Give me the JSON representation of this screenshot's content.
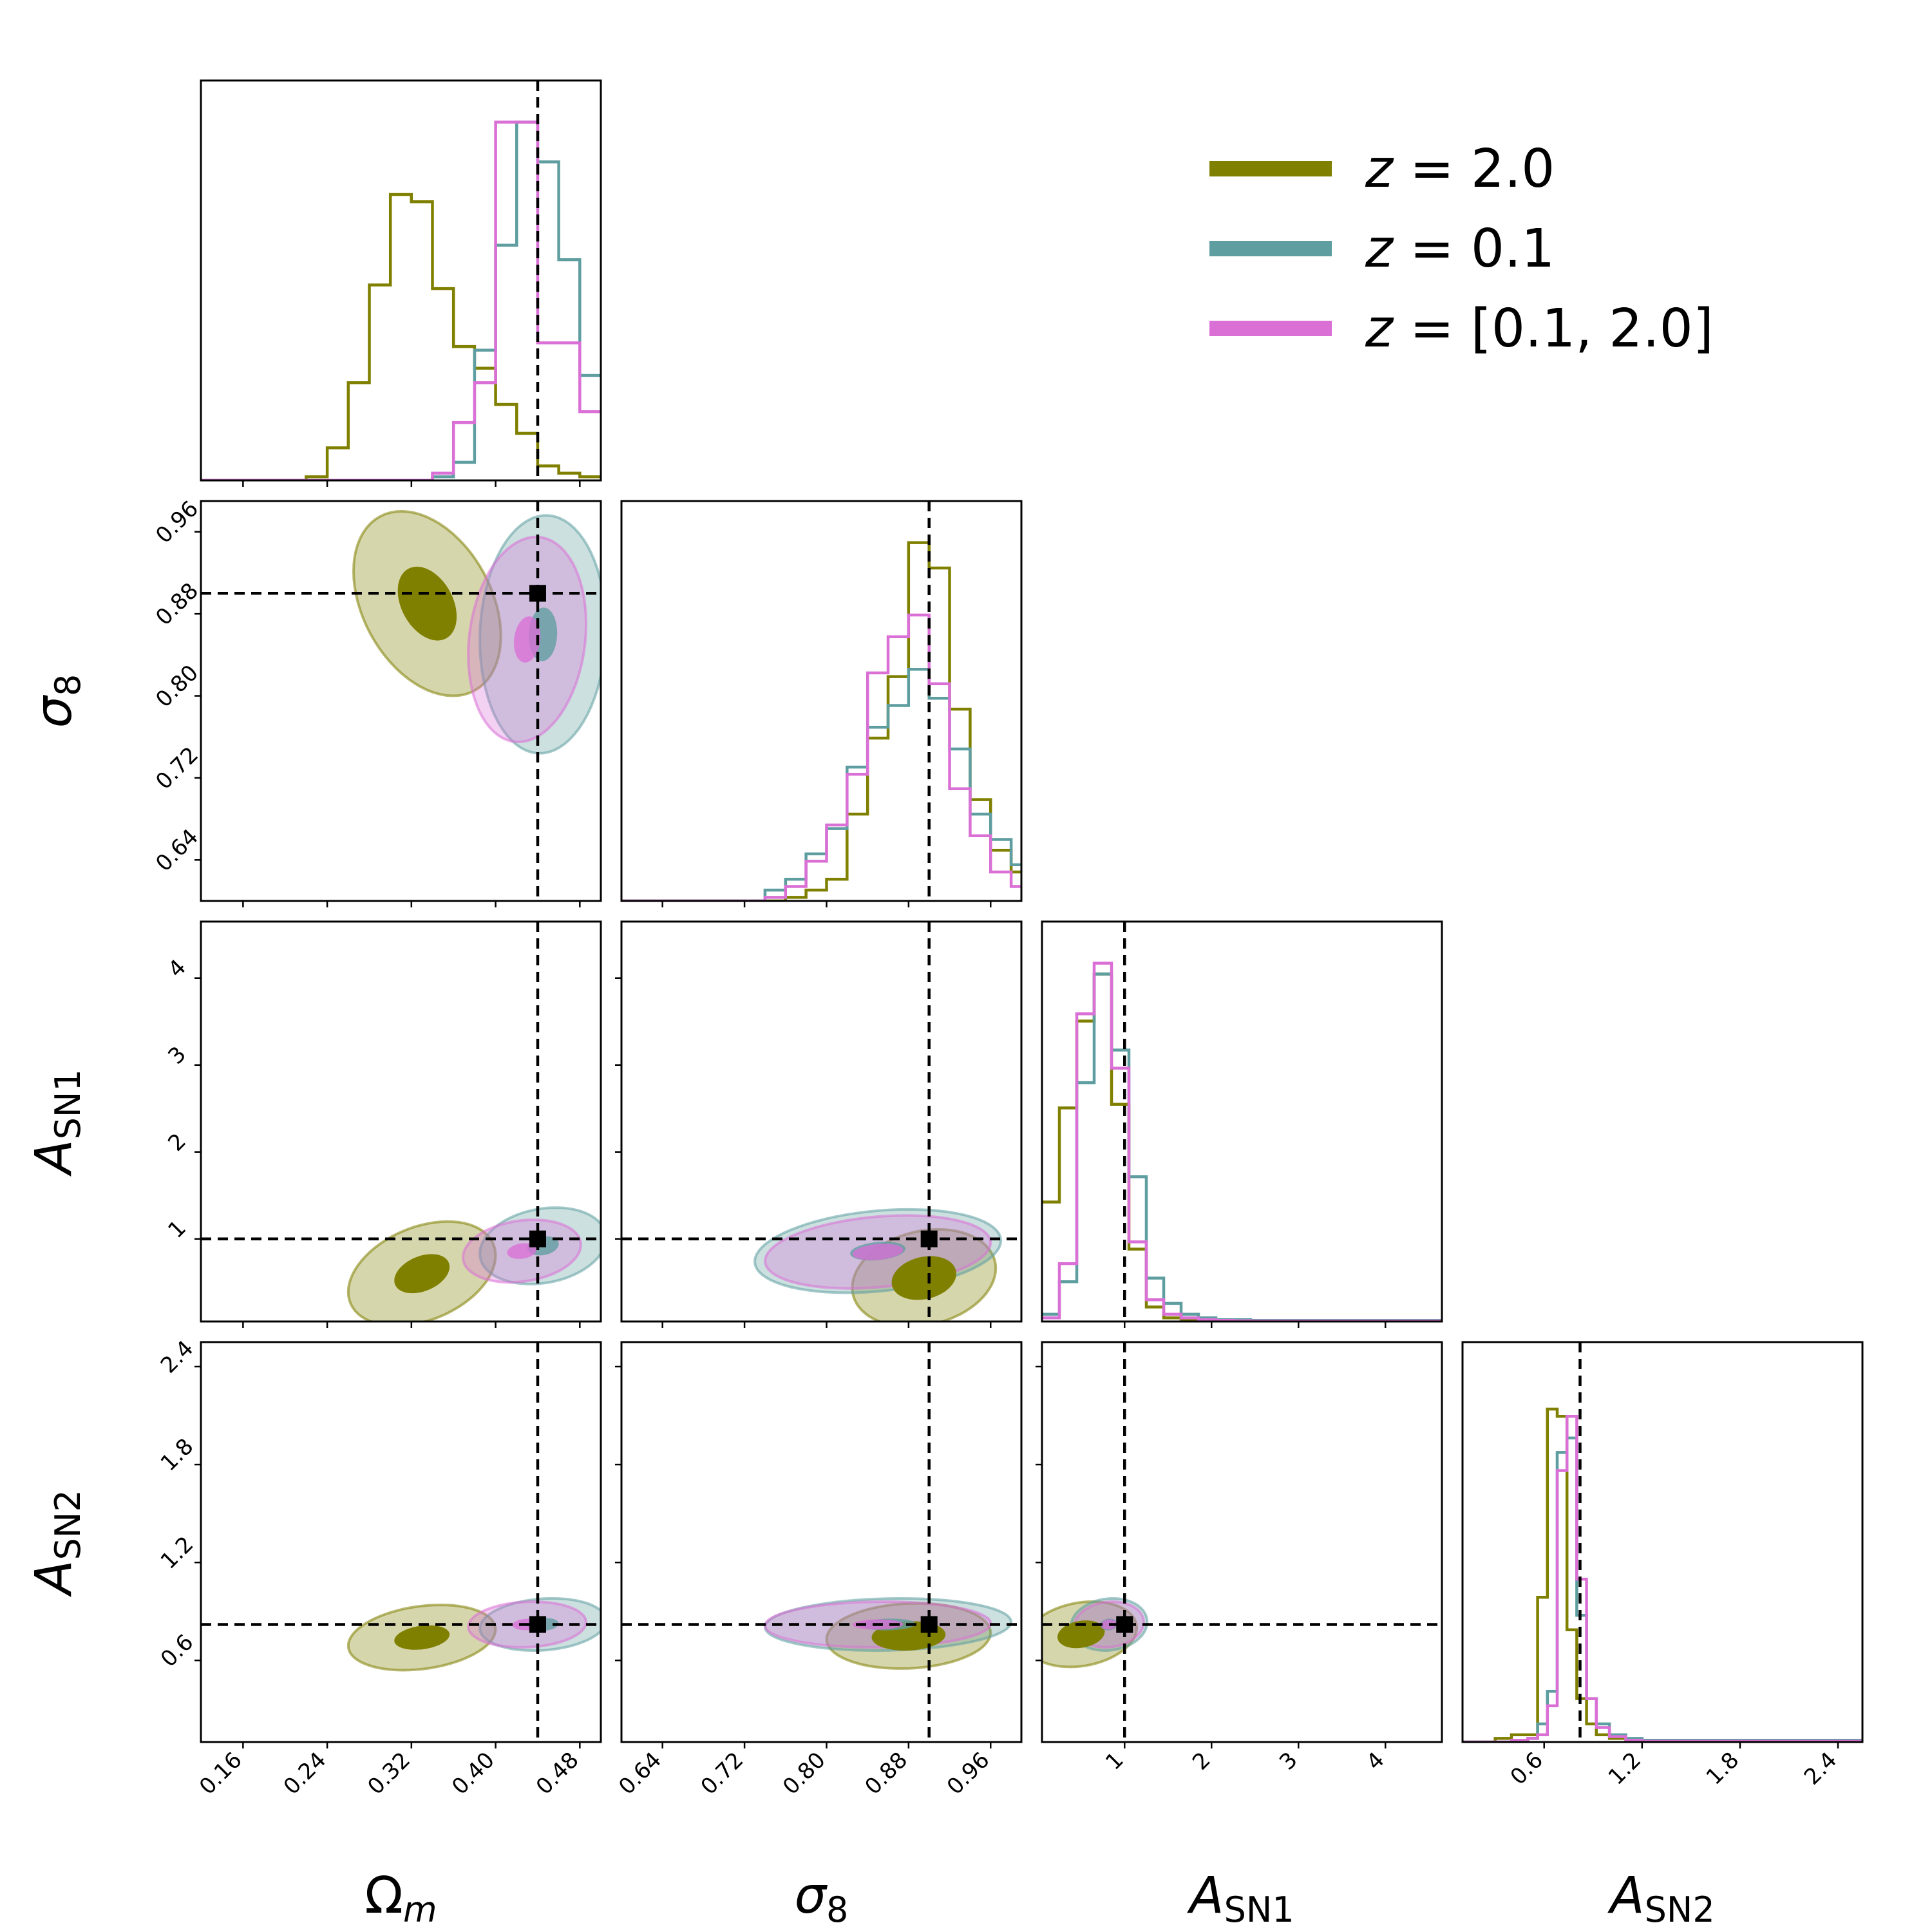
{
  "chart_data": {
    "type": "corner",
    "parameters": [
      "Omega_m",
      "sigma_8",
      "A_SN1",
      "A_SN2"
    ],
    "truth": {
      "Omega_m": 0.44,
      "sigma_8": 0.9,
      "A_SN1": 1.0,
      "A_SN2": 0.82
    },
    "ranges": {
      "Omega_m": [
        0.12,
        0.5
      ],
      "sigma_8": [
        0.6,
        0.99
      ],
      "A_SN1": [
        0.05,
        4.65
      ],
      "A_SN2": [
        0.1,
        2.55
      ]
    },
    "axis_labels": {
      "Omega_m": {
        "main": "Ω",
        "sub": "m"
      },
      "sigma_8": {
        "main": "σ",
        "sub": "8"
      },
      "A_SN1": {
        "main": "A",
        "sub": "SN1"
      },
      "A_SN2": {
        "main": "A",
        "sub": "SN2"
      }
    },
    "ticks": {
      "Omega_m": {
        "values": [
          0.16,
          0.24,
          0.32,
          0.4,
          0.48
        ],
        "labels": [
          "0.16",
          "0.24",
          "0.32",
          "0.40",
          "0.48"
        ]
      },
      "sigma_8": {
        "values": [
          0.64,
          0.72,
          0.8,
          0.88,
          0.96
        ],
        "labels": [
          "0.64",
          "0.72",
          "0.80",
          "0.88",
          "0.96"
        ]
      },
      "A_SN1": {
        "values": [
          1,
          2,
          3,
          4
        ],
        "labels": [
          "1",
          "2",
          "3",
          "4"
        ]
      },
      "A_SN2": {
        "values": [
          0.6,
          1.2,
          1.8,
          2.4
        ],
        "labels": [
          "0.6",
          "1.2",
          "1.8",
          "2.4"
        ]
      }
    },
    "series": [
      {
        "name": "z = 2.0",
        "legend": {
          "var": "z",
          "rest": " = 2.0"
        },
        "color": "#808000",
        "marginals": {
          "Omega_m": {
            "edges": [
              0.12,
              0.14,
              0.16,
              0.18,
              0.2,
              0.22,
              0.24,
              0.26,
              0.28,
              0.3,
              0.32,
              0.34,
              0.36,
              0.38,
              0.4,
              0.42,
              0.44,
              0.46,
              0.48,
              0.5
            ],
            "values": [
              0,
              0,
              0,
              0,
              0,
              0.01,
              0.09,
              0.27,
              0.54,
              0.79,
              0.77,
              0.53,
              0.37,
              0.31,
              0.21,
              0.13,
              0.04,
              0.02,
              0.01
            ]
          },
          "sigma_8": {
            "edges": [
              0.6,
              0.62,
              0.64,
              0.66,
              0.68,
              0.7,
              0.72,
              0.74,
              0.76,
              0.78,
              0.8,
              0.82,
              0.84,
              0.86,
              0.88,
              0.9,
              0.92,
              0.94,
              0.96,
              0.98,
              0.99
            ],
            "values": [
              0,
              0,
              0,
              0,
              0,
              0,
              0,
              0,
              0.01,
              0.03,
              0.06,
              0.24,
              0.45,
              0.62,
              0.99,
              0.92,
              0.53,
              0.28,
              0.14,
              0.08
            ]
          },
          "A_SN1": {
            "edges": [
              0.05,
              0.25,
              0.45,
              0.65,
              0.85,
              1.05,
              1.25,
              1.45,
              1.65,
              1.85,
              2.05,
              2.25,
              2.45,
              4.65
            ],
            "values": [
              0.33,
              0.59,
              0.83,
              0.96,
              0.6,
              0.2,
              0.04,
              0.01,
              0.005,
              0,
              0,
              0,
              0
            ]
          },
          "A_SN2": {
            "edges": [
              0.1,
              0.3,
              0.4,
              0.5,
              0.56,
              0.62,
              0.68,
              0.74,
              0.8,
              0.86,
              0.92,
              1.0,
              1.1,
              1.2,
              2.55
            ],
            "values": [
              0,
              0.01,
              0.02,
              0.02,
              0.4,
              0.92,
              0.9,
              0.31,
              0.12,
              0.05,
              0.02,
              0.01,
              0.005,
              0
            ]
          }
        },
        "contours": {
          "sigma_8|Omega_m": {
            "center": [
              0.335,
              0.89
            ],
            "sigma": [
              0.035,
              0.045
            ],
            "rho": -0.35,
            "inner_k": 0.8
          },
          "A_SN1|Omega_m": {
            "center": [
              0.33,
              0.6
            ],
            "sigma": [
              0.035,
              0.3
            ],
            "rho": 0.35,
            "inner_k": 0.75
          },
          "A_SN1|sigma_8": {
            "center": [
              0.895,
              0.55
            ],
            "sigma": [
              0.035,
              0.28
            ],
            "rho": 0.2,
            "inner_k": 0.9
          },
          "A_SN2|Omega_m": {
            "center": [
              0.33,
              0.74
            ],
            "sigma": [
              0.035,
              0.1
            ],
            "rho": 0.25,
            "inner_k": 0.75
          },
          "A_SN2|sigma_8": {
            "center": [
              0.88,
              0.75
            ],
            "sigma": [
              0.04,
              0.1
            ],
            "rho": 0.1,
            "inner_k": 0.9
          },
          "A_SN2|A_SN1": {
            "center": [
              0.5,
              0.76
            ],
            "sigma": [
              0.32,
              0.1
            ],
            "rho": 0.2,
            "inner_k": 0.85
          }
        }
      },
      {
        "name": "z = 0.1",
        "legend": {
          "var": "z",
          "rest": " = 0.1"
        },
        "color": "#5f9ea0",
        "marginals": {
          "Omega_m": {
            "edges": [
              0.12,
              0.14,
              0.16,
              0.18,
              0.2,
              0.22,
              0.24,
              0.26,
              0.28,
              0.3,
              0.32,
              0.34,
              0.36,
              0.38,
              0.4,
              0.42,
              0.44,
              0.46,
              0.48,
              0.5
            ],
            "values": [
              0,
              0,
              0,
              0,
              0,
              0,
              0,
              0,
              0,
              0,
              0,
              0.01,
              0.05,
              0.36,
              0.65,
              0.99,
              0.88,
              0.61,
              0.29
            ]
          },
          "sigma_8": {
            "edges": [
              0.6,
              0.62,
              0.64,
              0.66,
              0.68,
              0.7,
              0.72,
              0.74,
              0.76,
              0.78,
              0.8,
              0.82,
              0.84,
              0.86,
              0.88,
              0.9,
              0.92,
              0.94,
              0.96,
              0.98,
              0.99
            ],
            "values": [
              0,
              0,
              0,
              0,
              0,
              0,
              0,
              0.03,
              0.06,
              0.13,
              0.2,
              0.37,
              0.48,
              0.54,
              0.64,
              0.56,
              0.42,
              0.24,
              0.17,
              0.1
            ]
          },
          "A_SN1": {
            "edges": [
              0.05,
              0.25,
              0.45,
              0.65,
              0.85,
              1.05,
              1.25,
              1.45,
              1.65,
              1.85,
              2.05,
              2.25,
              2.45,
              4.65
            ],
            "values": [
              0.02,
              0.11,
              0.66,
              0.96,
              0.75,
              0.4,
              0.12,
              0.05,
              0.02,
              0.01,
              0.005,
              0.005,
              0.003
            ]
          },
          "A_SN2": {
            "edges": [
              0.1,
              0.3,
              0.4,
              0.5,
              0.56,
              0.62,
              0.68,
              0.74,
              0.8,
              0.86,
              0.92,
              1.0,
              1.1,
              1.2,
              2.55
            ],
            "values": [
              0,
              0,
              0.005,
              0.01,
              0.05,
              0.14,
              0.8,
              0.84,
              0.35,
              0.12,
              0.05,
              0.02,
              0.01,
              0.005
            ]
          }
        },
        "contours": {
          "sigma_8|Omega_m": {
            "center": [
              0.445,
              0.86
            ],
            "sigma": [
              0.03,
              0.058
            ],
            "rho": 0.05,
            "inner_k": 0.45
          },
          "A_SN1|Omega_m": {
            "center": [
              0.445,
              0.92
            ],
            "sigma": [
              0.03,
              0.22
            ],
            "rho": 0.2,
            "inner_k": 0.5
          },
          "A_SN1|sigma_8": {
            "center": [
              0.85,
              0.86
            ],
            "sigma": [
              0.06,
              0.24
            ],
            "rho": 0.25,
            "inner_k": 0.45
          },
          "A_SN2|Omega_m": {
            "center": [
              0.445,
              0.82
            ],
            "sigma": [
              0.03,
              0.08
            ],
            "rho": 0.15,
            "inner_k": 0.5
          },
          "A_SN2|sigma_8": {
            "center": [
              0.86,
              0.82
            ],
            "sigma": [
              0.06,
              0.08
            ],
            "rho": 0.1,
            "inner_k": 0.45
          },
          "A_SN2|A_SN1": {
            "center": [
              0.82,
              0.82
            ],
            "sigma": [
              0.22,
              0.08
            ],
            "rho": 0.1,
            "inner_k": 0.45
          }
        }
      },
      {
        "name": "z = [0.1, 2.0]",
        "legend": {
          "var": "z",
          "rest": " = [0.1, 2.0]"
        },
        "color": "#da70d6",
        "marginals": {
          "Omega_m": {
            "edges": [
              0.12,
              0.14,
              0.16,
              0.18,
              0.2,
              0.22,
              0.24,
              0.26,
              0.28,
              0.3,
              0.32,
              0.34,
              0.36,
              0.38,
              0.4,
              0.42,
              0.44,
              0.46,
              0.48,
              0.5
            ],
            "values": [
              0,
              0,
              0,
              0,
              0,
              0,
              0,
              0,
              0,
              0,
              0,
              0.02,
              0.16,
              0.27,
              0.99,
              0.99,
              0.38,
              0.38,
              0.19
            ]
          },
          "sigma_8": {
            "edges": [
              0.6,
              0.62,
              0.64,
              0.66,
              0.68,
              0.7,
              0.72,
              0.74,
              0.76,
              0.78,
              0.8,
              0.82,
              0.84,
              0.86,
              0.88,
              0.9,
              0.92,
              0.94,
              0.96,
              0.98,
              0.99
            ],
            "values": [
              0,
              0,
              0,
              0,
              0,
              0,
              0,
              0.01,
              0.04,
              0.11,
              0.21,
              0.35,
              0.63,
              0.73,
              0.79,
              0.6,
              0.31,
              0.18,
              0.08,
              0.04
            ]
          },
          "A_SN1": {
            "edges": [
              0.05,
              0.25,
              0.45,
              0.65,
              0.85,
              1.05,
              1.25,
              1.45,
              1.65,
              1.85,
              2.05,
              2.25,
              2.45,
              4.65
            ],
            "values": [
              0.01,
              0.16,
              0.85,
              0.99,
              0.7,
              0.22,
              0.06,
              0.02,
              0.01,
              0.005,
              0.003,
              0.002,
              0.001
            ]
          },
          "A_SN2": {
            "edges": [
              0.1,
              0.3,
              0.4,
              0.5,
              0.56,
              0.62,
              0.68,
              0.74,
              0.8,
              0.86,
              0.92,
              1.0,
              1.1,
              1.2,
              2.55
            ],
            "values": [
              0,
              0,
              0.005,
              0.01,
              0.02,
              0.1,
              0.75,
              0.9,
              0.45,
              0.12,
              0.04,
              0.015,
              0.005,
              0.002
            ]
          }
        },
        "contours": {
          "sigma_8|Omega_m": {
            "center": [
              0.43,
              0.855
            ],
            "sigma": [
              0.028,
              0.05
            ],
            "rho": 0.15,
            "inner_k": 0.45
          },
          "A_SN1|Omega_m": {
            "center": [
              0.425,
              0.86
            ],
            "sigma": [
              0.028,
              0.18
            ],
            "rho": 0.2,
            "inner_k": 0.5
          },
          "A_SN1|sigma_8": {
            "center": [
              0.85,
              0.85
            ],
            "sigma": [
              0.055,
              0.21
            ],
            "rho": 0.25,
            "inner_k": 0.45
          },
          "A_SN2|Omega_m": {
            "center": [
              0.43,
              0.82
            ],
            "sigma": [
              0.028,
              0.07
            ],
            "rho": 0.1,
            "inner_k": 0.5
          },
          "A_SN2|sigma_8": {
            "center": [
              0.85,
              0.82
            ],
            "sigma": [
              0.055,
              0.07
            ],
            "rho": 0.05,
            "inner_k": 0.45
          },
          "A_SN2|A_SN1": {
            "center": [
              0.82,
              0.82
            ],
            "sigma": [
              0.2,
              0.07
            ],
            "rho": 0.1,
            "inner_k": 0.45
          }
        }
      }
    ],
    "legend_position": "top-right"
  }
}
